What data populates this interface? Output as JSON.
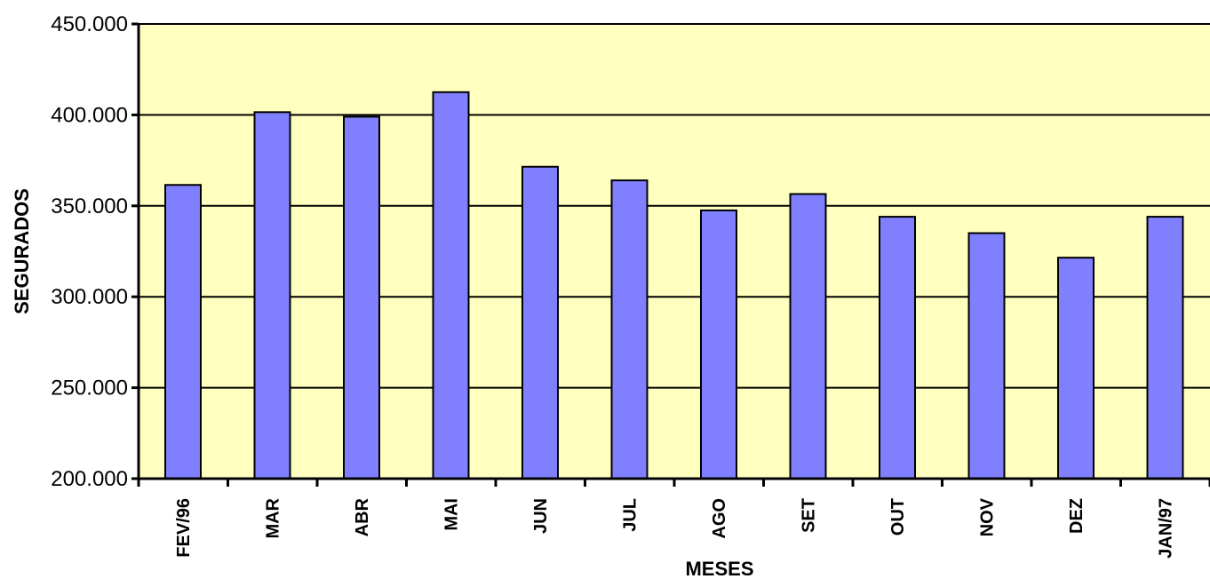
{
  "chart_data": {
    "type": "bar",
    "title": "",
    "xlabel": "MESES",
    "ylabel": "SEGURADOS",
    "categories": [
      "FEV/96",
      "MAR",
      "ABR",
      "MAI",
      "JUN",
      "JUL",
      "AGO",
      "SET",
      "OUT",
      "NOV",
      "DEZ",
      "JAN/97"
    ],
    "values": [
      361500,
      401500,
      399000,
      412500,
      371500,
      364000,
      347500,
      356500,
      344000,
      335000,
      321500,
      344000
    ],
    "ylim": [
      200000,
      450000
    ],
    "yticks": [
      200000,
      250000,
      300000,
      350000,
      400000,
      450000
    ],
    "ytick_labels": [
      "200.000",
      "250.000",
      "300.000",
      "350.000",
      "400.000",
      "450.000"
    ],
    "grid": true,
    "legend": "none",
    "colors": {
      "plot_background": "#FFFFC0",
      "bar_fill": "#8080FF",
      "bar_stroke": "#000000"
    }
  }
}
